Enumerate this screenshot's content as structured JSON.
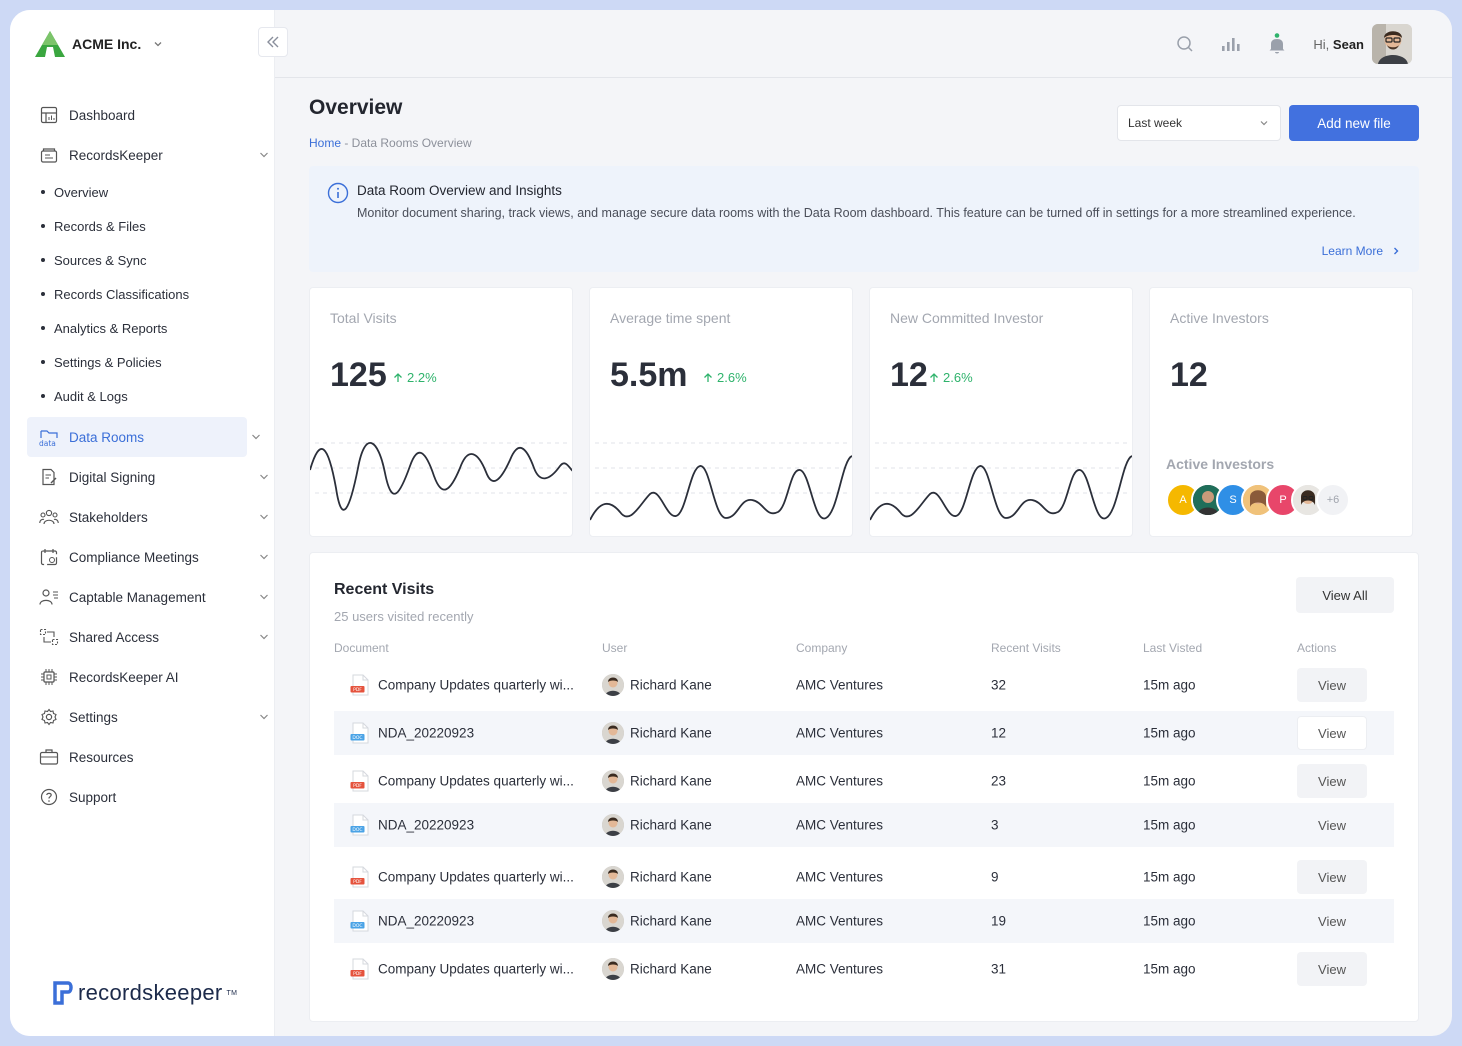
{
  "brand": {
    "name": "ACME Inc."
  },
  "sidebar": {
    "items": [
      {
        "label": "Dashboard",
        "icon": "dashboard-icon"
      },
      {
        "label": "RecordsKeeper",
        "icon": "records-icon"
      },
      {
        "label": "Data Rooms",
        "icon": "data-icon"
      },
      {
        "label": "Digital Signing",
        "icon": "signing-icon"
      },
      {
        "label": "Stakeholders",
        "icon": "stakeholders-icon"
      },
      {
        "label": "Compliance Meetings",
        "icon": "meetings-icon"
      },
      {
        "label": "Captable Management",
        "icon": "captable-icon"
      },
      {
        "label": "Shared Access",
        "icon": "shared-icon"
      },
      {
        "label": "RecordsKeeper AI",
        "icon": "ai-chip-icon"
      },
      {
        "label": "Settings",
        "icon": "gear-icon"
      },
      {
        "label": "Resources",
        "icon": "briefcase-icon"
      },
      {
        "label": "Support",
        "icon": "help-icon"
      }
    ],
    "sub": [
      "Overview",
      "Records & Files",
      "Sources & Sync",
      "Records Classifications",
      "Analytics & Reports",
      "Settings & Policies",
      "Audit & Logs"
    ],
    "footer_logo": "recordskeeper",
    "footer_tm": "TM"
  },
  "topbar": {
    "greeting": "Hi,",
    "user": "Sean"
  },
  "page": {
    "title": "Overview",
    "breadcrumb_home": "Home",
    "breadcrumb_rest": " - Data Rooms Overview",
    "period": "Last week",
    "add_button": "Add new file"
  },
  "info": {
    "title": "Data Room Overview and Insights",
    "desc": "Monitor document sharing, track views, and manage secure data rooms with the Data Room dashboard. This feature can be turned off in settings for a more streamlined experience.",
    "learn_more": "Learn More"
  },
  "stats": [
    {
      "label": "Total Visits",
      "value": "125",
      "change": "2.2%"
    },
    {
      "label": "Average time spent",
      "value": "5.5m",
      "change": "2.6%"
    },
    {
      "label": "New Committed Investor",
      "value": "12",
      "change": "2.6%"
    },
    {
      "label": "Active Investors",
      "value": "12",
      "sub": "Active Investors",
      "avatars": [
        "A",
        "",
        "S",
        "",
        "P",
        ""
      ],
      "more": "+6"
    }
  ],
  "colors": {
    "accent": "#4271df",
    "positive": "#2fb36c"
  },
  "visits": {
    "title": "Recent Visits",
    "subtitle": "25 users visited recently",
    "view_all": "View All",
    "columns": [
      "Document",
      "User",
      "Company",
      "Recent Visits",
      "Last Visted",
      "Actions"
    ],
    "rows": [
      {
        "doc": "Company Updates quarterly wi...",
        "type": "PDF",
        "user": "Richard Kane",
        "company": "AMC Ventures",
        "visits": "32",
        "last": "15m ago",
        "action": "View"
      },
      {
        "doc": "NDA_20220923",
        "type": "DOC",
        "user": "Richard Kane",
        "company": "AMC Ventures",
        "visits": "12",
        "last": "15m ago",
        "action": "View"
      },
      {
        "doc": "Company Updates quarterly wi...",
        "type": "PDF",
        "user": "Richard Kane",
        "company": "AMC Ventures",
        "visits": "23",
        "last": "15m ago",
        "action": "View"
      },
      {
        "doc": "NDA_20220923",
        "type": "DOC",
        "user": "Richard Kane",
        "company": "AMC Ventures",
        "visits": "3",
        "last": "15m ago",
        "action": "View"
      },
      {
        "doc": "Company Updates quarterly wi...",
        "type": "PDF",
        "user": "Richard Kane",
        "company": "AMC Ventures",
        "visits": "9",
        "last": "15m ago",
        "action": "View"
      },
      {
        "doc": "NDA_20220923",
        "type": "DOC",
        "user": "Richard Kane",
        "company": "AMC Ventures",
        "visits": "19",
        "last": "15m ago",
        "action": "View"
      },
      {
        "doc": "Company Updates quarterly wi...",
        "type": "PDF",
        "user": "Richard Kane",
        "company": "AMC Ventures",
        "visits": "31",
        "last": "15m ago",
        "action": "View"
      }
    ]
  }
}
